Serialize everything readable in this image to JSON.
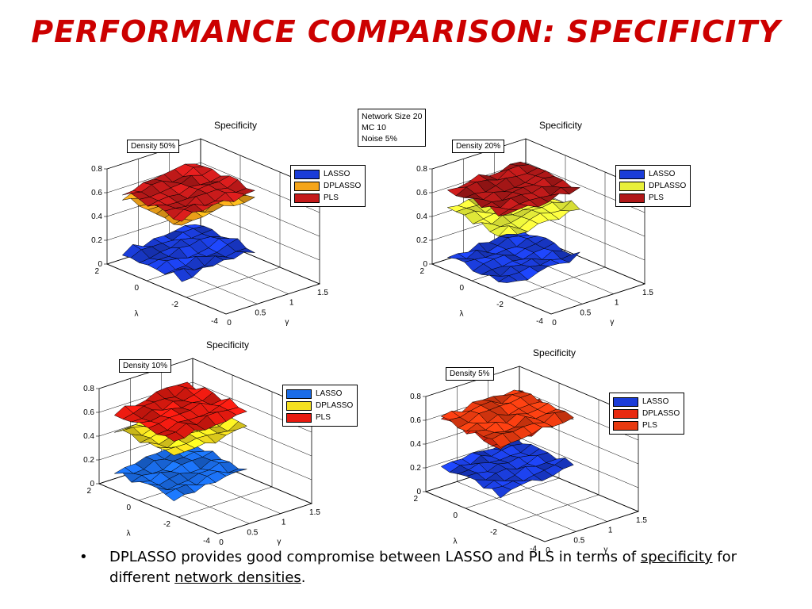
{
  "slide": {
    "title": "PERFORMANCE COMPARISON: SPECIFICITY"
  },
  "info_box": {
    "lines": [
      "Network Size 20",
      "MC 10",
      "Noise 5%"
    ]
  },
  "bullet": {
    "marker": "•",
    "text_before": "DPLASSO provides good compromise between LASSO and PLS in terms of ",
    "link1": "specificity",
    "text_middle": " for different ",
    "link2": "network densities",
    "text_after": "."
  },
  "chart_data": [
    {
      "type": "surface3d",
      "title": "Specificity",
      "annotation": "Density 50%",
      "xlabel": "γ",
      "ylabel": "λ",
      "xticks": [
        "0",
        "0.5",
        "1",
        "1.5"
      ],
      "yticks": [
        "2",
        "0",
        "-2",
        "-4"
      ],
      "zticks": [
        "0",
        "0.2",
        "0.4",
        "0.6",
        "0.8"
      ],
      "zlim": [
        0,
        0.8
      ],
      "grid": true,
      "legend_position": "top-right",
      "series": [
        {
          "name": "LASSO",
          "color": "#1a3cd8",
          "level": 0.1
        },
        {
          "name": "DPLASSO",
          "color": "#f5a51a",
          "level": 0.55
        },
        {
          "name": "PLS",
          "color": "#c41a1a",
          "level": 0.6
        }
      ]
    },
    {
      "type": "surface3d",
      "title": "Specificity",
      "annotation": "Density 20%",
      "xlabel": "γ",
      "ylabel": "λ",
      "xticks": [
        "0",
        "0.5",
        "1",
        "1.5"
      ],
      "yticks": [
        "2",
        "0",
        "-2",
        "-4"
      ],
      "zticks": [
        "0",
        "0.2",
        "0.4",
        "0.6",
        "0.8"
      ],
      "zlim": [
        0,
        0.8
      ],
      "grid": true,
      "legend_position": "top-right",
      "series": [
        {
          "name": "LASSO",
          "color": "#1a3cd8",
          "level": 0.05
        },
        {
          "name": "DPLASSO",
          "color": "#e8f03a",
          "level": 0.45
        },
        {
          "name": "PLS",
          "color": "#b01818",
          "level": 0.62
        }
      ]
    },
    {
      "type": "surface3d",
      "title": "Specificity",
      "annotation": "Density 10%",
      "xlabel": "γ",
      "ylabel": "λ",
      "xticks": [
        "0",
        "0.5",
        "1",
        "1.5"
      ],
      "yticks": [
        "2",
        "0",
        "-2",
        "-4"
      ],
      "zticks": [
        "0",
        "0.2",
        "0.4",
        "0.6",
        "0.8"
      ],
      "zlim": [
        0,
        0.8
      ],
      "grid": true,
      "legend_position": "top-right",
      "series": [
        {
          "name": "LASSO",
          "color": "#1a6ce8",
          "level": 0.1
        },
        {
          "name": "DPLASSO",
          "color": "#f5e020",
          "level": 0.45
        },
        {
          "name": "PLS",
          "color": "#e81a10",
          "level": 0.6
        }
      ]
    },
    {
      "type": "surface3d",
      "title": "Specificity",
      "annotation": "Density 5%",
      "xlabel": "γ",
      "ylabel": "λ",
      "xticks": [
        "0",
        "0.5",
        "1",
        "1.5"
      ],
      "yticks": [
        "2",
        "0",
        "-2",
        "-4"
      ],
      "zticks": [
        "0",
        "0.2",
        "0.4",
        "0.6",
        "0.8"
      ],
      "zlim": [
        0,
        0.8
      ],
      "grid": true,
      "legend_position": "top-right",
      "series": [
        {
          "name": "LASSO",
          "color": "#1a3cd8",
          "level": 0.2
        },
        {
          "name": "DPLASSO",
          "color": "#e82a10",
          "level": 0.6
        },
        {
          "name": "PLS",
          "color": "#e83a10",
          "level": 0.62
        }
      ]
    }
  ]
}
